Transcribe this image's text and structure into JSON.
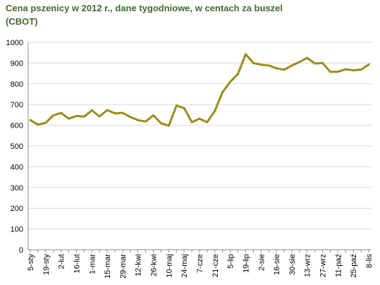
{
  "chart_data": {
    "type": "line",
    "title": "Cena pszenicy w 2012 r., dane tygodniowe, w centach za buszel",
    "subtitle": "(CBOT)",
    "xlabel": "",
    "ylabel": "",
    "ylim": [
      0,
      1000
    ],
    "yticks": [
      0,
      100,
      200,
      300,
      400,
      500,
      600,
      700,
      800,
      900,
      1000
    ],
    "grid": "horizontal",
    "legend": "none",
    "color": "#9c8b1c",
    "x_tick_labels": [
      "5-sty",
      "19-sty",
      "2-lut",
      "16-lut",
      "1-mar",
      "15-mar",
      "29-mar",
      "12-kwi",
      "26-kwi",
      "10-maj",
      "24-maj",
      "7-cze",
      "21-cze",
      "5-lip",
      "19-lip",
      "2-sie",
      "16-sie",
      "30-sie",
      "13-wrz",
      "27-wrz",
      "11-paź",
      "25-paź",
      "8-lis"
    ],
    "series": [
      {
        "values": [
          625,
          603,
          612,
          648,
          660,
          632,
          645,
          642,
          672,
          643,
          673,
          657,
          660,
          640,
          625,
          618,
          648,
          610,
          598,
          695,
          683,
          615,
          632,
          615,
          670,
          760,
          810,
          848,
          943,
          900,
          892,
          888,
          875,
          868,
          888,
          905,
          925,
          898,
          900,
          858,
          858,
          870,
          865,
          868,
          893
        ]
      }
    ]
  }
}
